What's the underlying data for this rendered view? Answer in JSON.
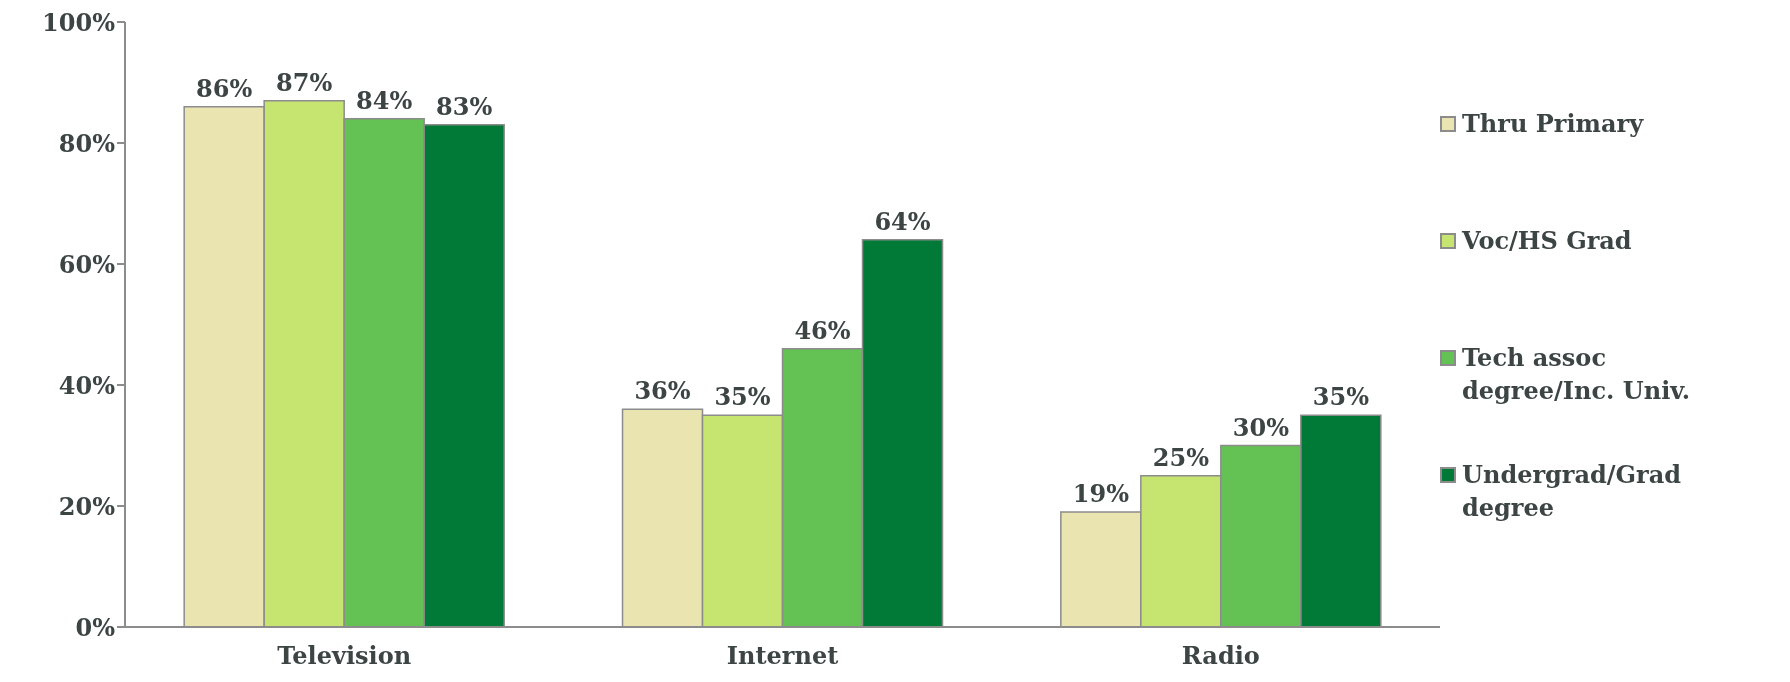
{
  "chart_data": {
    "type": "bar",
    "categories": [
      "Television",
      "Internet",
      "Radio"
    ],
    "series": [
      {
        "name": "Thru Primary",
        "color": "#e9e4b0",
        "values": [
          86,
          36,
          19
        ],
        "value_labels": [
          "86%",
          "36%",
          "19%"
        ]
      },
      {
        "name": "Voc/HS Grad",
        "color": "#c5e570",
        "values": [
          87,
          35,
          25
        ],
        "value_labels": [
          "87%",
          "35%",
          "25%"
        ]
      },
      {
        "name": "Tech assoc degree/Inc. Univ.",
        "color": "#63c253",
        "values": [
          84,
          46,
          30
        ],
        "value_labels": [
          "84%",
          "46%",
          "30%"
        ]
      },
      {
        "name": "Undergrad/Grad degree",
        "color": "#007a36",
        "values": [
          83,
          64,
          35
        ],
        "value_labels": [
          "83%",
          "64%",
          "35%"
        ]
      }
    ],
    "ylim": [
      0,
      100
    ],
    "yticks": [
      {
        "value": 0,
        "label": "0%"
      },
      {
        "value": 20,
        "label": "20%"
      },
      {
        "value": 40,
        "label": "40%"
      },
      {
        "value": 60,
        "label": "60%"
      },
      {
        "value": 80,
        "label": "80%"
      },
      {
        "value": 100,
        "label": "100%"
      }
    ],
    "grid": false,
    "legend": "right"
  }
}
